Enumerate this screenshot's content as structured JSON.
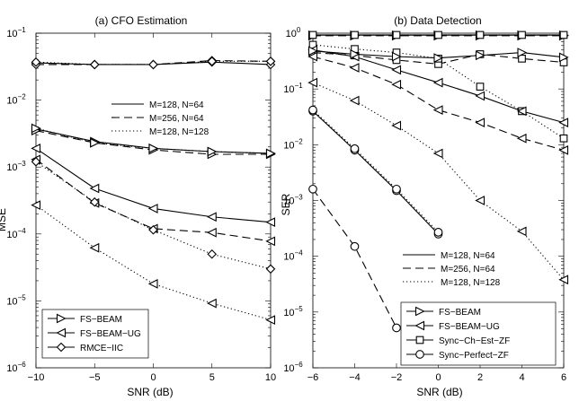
{
  "chart_data": [
    {
      "type": "line",
      "title": "(a)  CFO Estimation",
      "xlabel": "SNR (dB)",
      "ylabel": "MSE",
      "xlim": [
        -10,
        10
      ],
      "ylim_log10": [
        -6,
        -1
      ],
      "yscale": "log",
      "x_ticks": [
        "−10",
        "−5",
        "0",
        "5",
        "10"
      ],
      "x_tick_values": [
        -10,
        -5,
        0,
        5,
        10
      ],
      "y_ticks": [
        {
          "exp": -6,
          "base": "10",
          "sup": "−6"
        },
        {
          "exp": -5,
          "base": "10",
          "sup": "−5"
        },
        {
          "exp": -4,
          "base": "10",
          "sup": "−4"
        },
        {
          "exp": -3,
          "base": "10",
          "sup": "−3"
        },
        {
          "exp": -2,
          "base": "10",
          "sup": "−2"
        },
        {
          "exp": -1,
          "base": "10",
          "sup": "−1"
        }
      ],
      "x": [
        -10,
        -5,
        0,
        5,
        10
      ],
      "series": [
        {
          "name": "RMCE-IIC (M=128, N=64)",
          "style": "solid",
          "marker": "diamond",
          "values": [
            0.036,
            0.034,
            0.034,
            0.037,
            0.034
          ]
        },
        {
          "name": "RMCE-IIC (M=256, N=64)",
          "style": "dashed",
          "marker": "diamond",
          "values": [
            0.034,
            0.034,
            0.034,
            0.039,
            0.038
          ]
        },
        {
          "name": "RMCE-IIC (M=128, N=128)",
          "style": "dotted",
          "marker": "diamond",
          "values": [
            0.037,
            0.034,
            0.034,
            0.038,
            0.038
          ]
        },
        {
          "name": "FS-BEAM (M=128, N=64)",
          "style": "solid",
          "marker": "tri-right",
          "values": [
            0.0037,
            0.0024,
            0.0019,
            0.0017,
            0.0016
          ]
        },
        {
          "name": "FS-BEAM (M=256, N=64)",
          "style": "dashed",
          "marker": "tri-right",
          "values": [
            0.0035,
            0.0023,
            0.0018,
            0.00155,
            0.00155
          ]
        },
        {
          "name": "FS-BEAM (M=128, N=128)",
          "style": "dotted",
          "marker": "tri-right",
          "values": [
            0.0038,
            0.0023,
            0.0019,
            0.0017,
            0.0016
          ]
        },
        {
          "name": "FS-BEAM-UG (M=128, N=64)",
          "style": "solid",
          "marker": "tri-left",
          "values": [
            0.0019,
            0.00048,
            0.00024,
            0.00018,
            0.00015
          ]
        },
        {
          "name": "FS-BEAM-UG (M=256, N=64)",
          "style": "dashed",
          "marker": "tri-left",
          "values": [
            0.0013,
            0.00029,
            0.00012,
            0.000105,
            7.8e-05
          ]
        },
        {
          "name": "FS-BEAM-UG (M=128, N=128)",
          "style": "dotted",
          "marker": "tri-left",
          "values": [
            0.00027,
            6.2e-05,
            1.8e-05,
            9.2e-06,
            5.2e-06
          ]
        },
        {
          "name": "RMCE-IIC extra (M=128, N=128)",
          "style": "dotted",
          "marker": "diamond",
          "values": [
            0.0012,
            0.0003,
            0.000115,
            5e-05,
            3e-05
          ]
        }
      ],
      "linestyle_legend": [
        {
          "label": "M=128, N=64",
          "style": "solid"
        },
        {
          "label": "M=256, N=64",
          "style": "dashed"
        },
        {
          "label": "M=128, N=128",
          "style": "dotted"
        }
      ],
      "marker_legend": [
        {
          "label": "FS−BEAM",
          "marker": "tri-right"
        },
        {
          "label": "FS−BEAM−UG",
          "marker": "tri-left"
        },
        {
          "label": "RMCE−IIC",
          "marker": "diamond"
        }
      ]
    },
    {
      "type": "line",
      "title": "(b)  Data Detection",
      "xlabel": "SNR (dB)",
      "ylabel": "SER",
      "xlim": [
        -6,
        6
      ],
      "ylim_log10": [
        -6,
        0
      ],
      "yscale": "log",
      "x_ticks": [
        "−6",
        "−4",
        "−2",
        "0",
        "2",
        "4",
        "6"
      ],
      "x_tick_values": [
        -6,
        -4,
        -2,
        0,
        2,
        4,
        6
      ],
      "y_ticks": [
        {
          "exp": -6,
          "base": "10",
          "sup": "−6"
        },
        {
          "exp": -5,
          "base": "10",
          "sup": "−5"
        },
        {
          "exp": -4,
          "base": "10",
          "sup": "−4"
        },
        {
          "exp": -3,
          "base": "10",
          "sup": "−3"
        },
        {
          "exp": -2,
          "base": "10",
          "sup": "−2"
        },
        {
          "exp": -1,
          "base": "10",
          "sup": "−1"
        },
        {
          "exp": 0,
          "base": "10",
          "sup": "0"
        }
      ],
      "series": [
        {
          "name": "FS-BEAM (M=128, N=64)",
          "style": "solid",
          "marker": "tri-right",
          "x": [
            -6,
            -4,
            -2,
            0,
            2,
            4,
            6
          ],
          "values": [
            0.92,
            0.92,
            0.92,
            0.92,
            0.92,
            0.92,
            0.92
          ]
        },
        {
          "name": "FS-BEAM (M=256, N=64)",
          "style": "dashed",
          "marker": "tri-right",
          "x": [
            -6,
            -4,
            -2,
            0,
            2,
            4,
            6
          ],
          "values": [
            0.9,
            0.9,
            0.9,
            0.9,
            0.9,
            0.9,
            0.9
          ]
        },
        {
          "name": "Sync-Ch-Est-ZF (M=128, N=64)",
          "style": "solid",
          "marker": "square",
          "x": [
            -6,
            -4,
            -2,
            0,
            2,
            4,
            6
          ],
          "values": [
            0.93,
            0.93,
            0.93,
            0.93,
            0.93,
            0.93,
            0.93
          ]
        },
        {
          "name": "Sync-Ch-Est-ZF (M=256, N=64)",
          "style": "dashed",
          "marker": "square",
          "x": [
            -6,
            -4,
            -2,
            0,
            2,
            4,
            6
          ],
          "values": [
            0.45,
            0.4,
            0.33,
            0.28,
            0.42,
            0.35,
            0.3
          ]
        },
        {
          "name": "Sync-Ch-Est-ZF (M=128, N=128)",
          "style": "dotted",
          "marker": "square",
          "x": [
            -6,
            -4,
            -2,
            0,
            2,
            4,
            6
          ],
          "values": [
            0.62,
            0.52,
            0.45,
            0.35,
            0.11,
            0.04,
            0.013
          ]
        },
        {
          "name": "FS-BEAM-UG (M=128, N=64)",
          "style": "solid",
          "marker": "tri-left",
          "x": [
            -6,
            -4,
            -2,
            0,
            2,
            4,
            6
          ],
          "values": [
            0.5,
            0.38,
            0.22,
            0.13,
            0.075,
            0.04,
            0.025
          ]
        },
        {
          "name": "FS-BEAM-UG (M=256, N=64)",
          "style": "dashed",
          "marker": "tri-left",
          "x": [
            -6,
            -4,
            -2,
            0,
            2,
            4,
            6
          ],
          "values": [
            0.38,
            0.24,
            0.12,
            0.042,
            0.025,
            0.013,
            0.008
          ]
        },
        {
          "name": "FS-BEAM-UG (M=128, N=128)",
          "style": "dotted",
          "marker": "tri-left",
          "x": [
            -6,
            -4,
            -2,
            0,
            2,
            4,
            6
          ],
          "values": [
            0.13,
            0.062,
            0.022,
            0.007,
            0.001,
            0.00028,
            3.8e-05
          ]
        },
        {
          "name": "FS-BEAM-UG extra (M=128, N=64)",
          "style": "solid",
          "marker": "tri-right",
          "x": [
            -6,
            -4,
            -2,
            0,
            2,
            4,
            6
          ],
          "values": [
            0.48,
            0.42,
            0.38,
            0.36,
            0.4,
            0.45,
            0.37
          ]
        },
        {
          "name": "Sync-Perfect-ZF (M=128, N=64)",
          "style": "solid",
          "marker": "circle",
          "x": [
            -6,
            -4,
            -2,
            0
          ],
          "values": [
            0.04,
            0.008,
            0.0015,
            0.00025
          ]
        },
        {
          "name": "Sync-Perfect-ZF (M=256, N=64)",
          "style": "dashed",
          "marker": "circle",
          "x": [
            -6,
            -4,
            -2
          ],
          "values": [
            0.0016,
            0.00015,
            5.2e-06
          ]
        },
        {
          "name": "Sync-Perfect-ZF (M=128, N=128)",
          "style": "dotted",
          "marker": "circle",
          "x": [
            -6,
            -4,
            -2,
            0
          ],
          "values": [
            0.042,
            0.0085,
            0.0016,
            0.00027
          ]
        }
      ],
      "linestyle_legend": [
        {
          "label": "M=128, N=64",
          "style": "solid"
        },
        {
          "label": "M=256, N=64",
          "style": "dashed"
        },
        {
          "label": "M=128, N=128",
          "style": "dotted"
        }
      ],
      "marker_legend": [
        {
          "label": "FS−BEAM",
          "marker": "tri-right"
        },
        {
          "label": "FS−BEAM−UG",
          "marker": "tri-left"
        },
        {
          "label": "Sync−Ch−Est−ZF",
          "marker": "square"
        },
        {
          "label": "Sync−Perfect−ZF",
          "marker": "circle"
        }
      ]
    }
  ]
}
